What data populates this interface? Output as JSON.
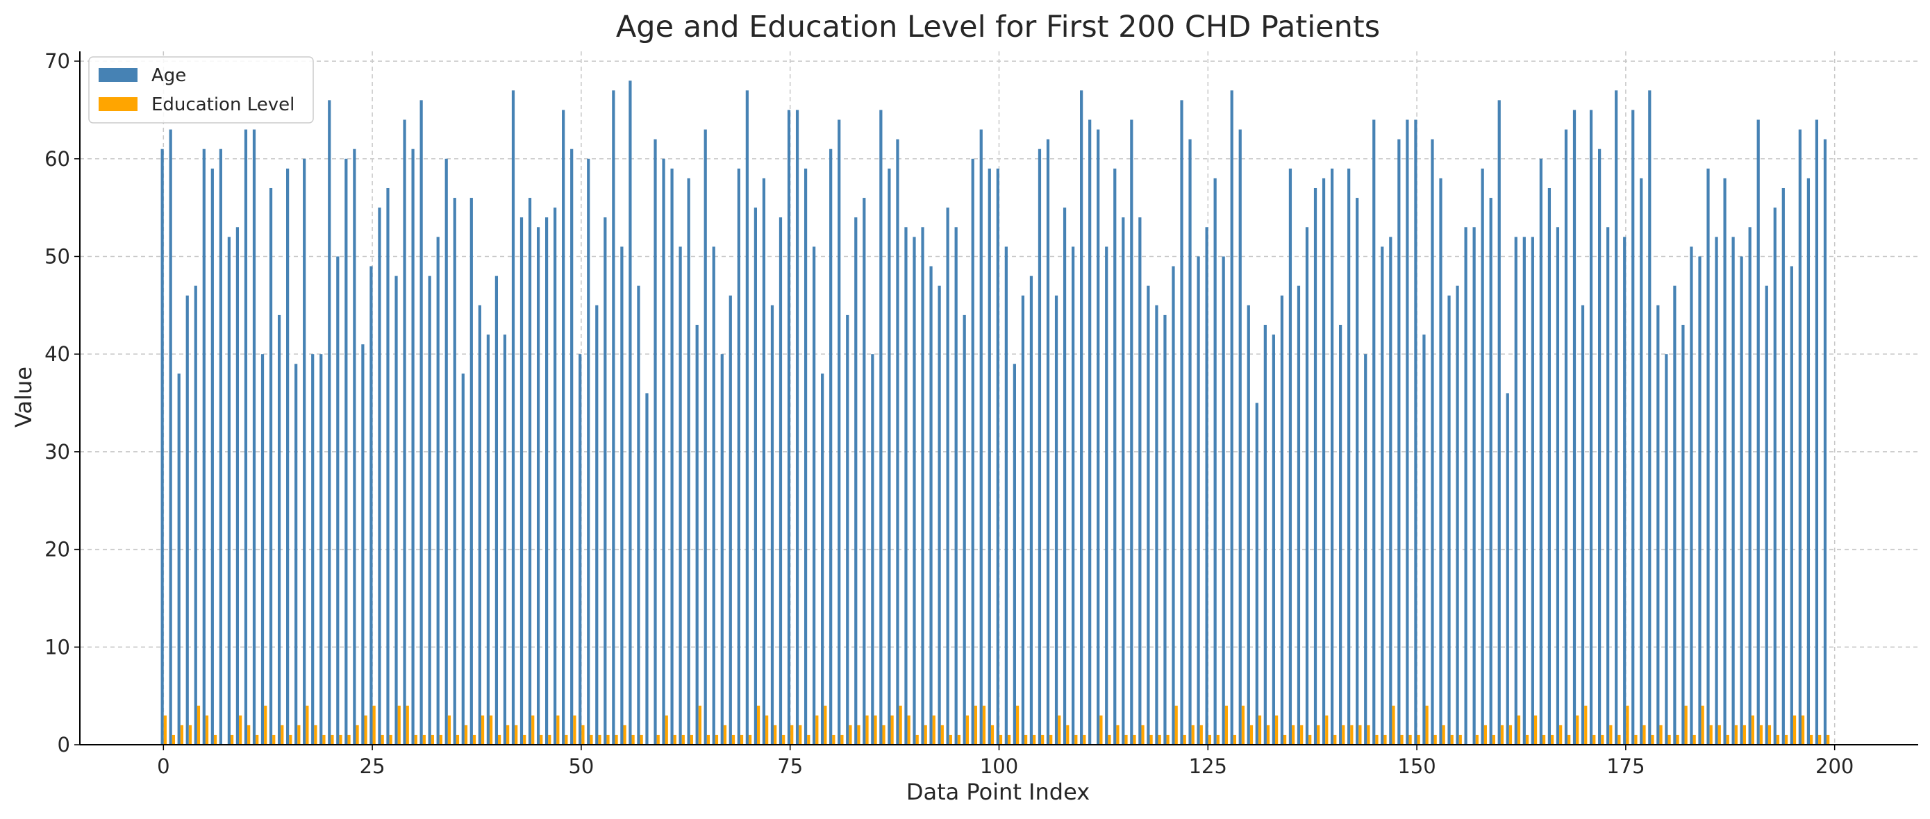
{
  "chart_data": {
    "type": "bar",
    "title": "Age and Education Level for First 200 CHD Patients",
    "xlabel": "Data Point Index",
    "ylabel": "Value",
    "xlim": [
      -10,
      210
    ],
    "ylim": [
      0,
      71
    ],
    "xticks": [
      0,
      25,
      50,
      75,
      100,
      125,
      150,
      175,
      200
    ],
    "yticks": [
      0,
      10,
      20,
      30,
      40,
      50,
      60,
      70
    ],
    "grid": true,
    "legend_position": "top-left",
    "categories_start": 0,
    "series": [
      {
        "name": "Age",
        "color": "#4682b4",
        "values": [
          61,
          63,
          38,
          46,
          47,
          61,
          59,
          61,
          52,
          53,
          63,
          63,
          40,
          57,
          44,
          59,
          39,
          60,
          40,
          40,
          66,
          50,
          60,
          61,
          41,
          49,
          55,
          57,
          48,
          64,
          61,
          66,
          48,
          52,
          60,
          56,
          38,
          56,
          45,
          42,
          48,
          42,
          67,
          54,
          56,
          53,
          54,
          55,
          65,
          61,
          40,
          60,
          45,
          54,
          67,
          51,
          68,
          47,
          36,
          62,
          60,
          59,
          51,
          58,
          43,
          63,
          51,
          40,
          46,
          59,
          67,
          55,
          58,
          45,
          54,
          65,
          65,
          59,
          51,
          38,
          61,
          64,
          44,
          54,
          56,
          40,
          65,
          59,
          62,
          53,
          52,
          53,
          49,
          47,
          55,
          53,
          44,
          60,
          63,
          59,
          59,
          51,
          39,
          46,
          48,
          61,
          62,
          46,
          55,
          51,
          67,
          64,
          63,
          51,
          59,
          54,
          64,
          54,
          47,
          45,
          44,
          49,
          66,
          62,
          50,
          53,
          58,
          50,
          67,
          63,
          45,
          35,
          43,
          42,
          46,
          59,
          47,
          53,
          57,
          58,
          59,
          43,
          59,
          56,
          40,
          64,
          51,
          52,
          62,
          64,
          64,
          42,
          62,
          58,
          46,
          47,
          53,
          53,
          59,
          56,
          66,
          36,
          52,
          52,
          52,
          60,
          57,
          53,
          63,
          65,
          45,
          65,
          61,
          53,
          67,
          52,
          65,
          58,
          67,
          45,
          40,
          47,
          43,
          51,
          50,
          59,
          52,
          58,
          52,
          50,
          53,
          64,
          47,
          55,
          57,
          49,
          63,
          58,
          64,
          62
        ]
      },
      {
        "name": "Education Level",
        "color": "#ffa500",
        "values": [
          3,
          1,
          2,
          2,
          4,
          3,
          1,
          0,
          1,
          3,
          2,
          1,
          4,
          1,
          2,
          1,
          2,
          4,
          2,
          1,
          1,
          1,
          1,
          2,
          3,
          4,
          1,
          1,
          4,
          4,
          1,
          1,
          1,
          1,
          3,
          1,
          2,
          1,
          3,
          3,
          1,
          2,
          2,
          1,
          3,
          1,
          1,
          3,
          1,
          3,
          2,
          1,
          1,
          1,
          1,
          2,
          1,
          1,
          0,
          1,
          3,
          1,
          1,
          1,
          4,
          1,
          1,
          2,
          1,
          1,
          1,
          4,
          3,
          2,
          1,
          2,
          2,
          1,
          3,
          4,
          1,
          1,
          2,
          2,
          3,
          3,
          2,
          3,
          4,
          3,
          1,
          2,
          3,
          2,
          1,
          1,
          3,
          4,
          4,
          2,
          1,
          1,
          4,
          1,
          1,
          1,
          1,
          3,
          2,
          1,
          1,
          0,
          3,
          1,
          2,
          1,
          1,
          2,
          1,
          1,
          1,
          4,
          1,
          2,
          2,
          1,
          1,
          4,
          1,
          4,
          2,
          3,
          2,
          3,
          1,
          2,
          2,
          1,
          2,
          3,
          1,
          2,
          2,
          2,
          2,
          1,
          1,
          4,
          1,
          1,
          1,
          4,
          1,
          2,
          1,
          1,
          0,
          1,
          2,
          1,
          2,
          2,
          3,
          1,
          3,
          1,
          1,
          2,
          1,
          3,
          4,
          1,
          1,
          2,
          1,
          4,
          1,
          2,
          1,
          2,
          1,
          1,
          4,
          1,
          4,
          2,
          2,
          1,
          2,
          2,
          3,
          2,
          2,
          1,
          1,
          3,
          3,
          1,
          1,
          1
        ]
      }
    ]
  },
  "colors": {
    "grid": "#c8c8c8",
    "axis": "#000000",
    "text": "#262626"
  }
}
